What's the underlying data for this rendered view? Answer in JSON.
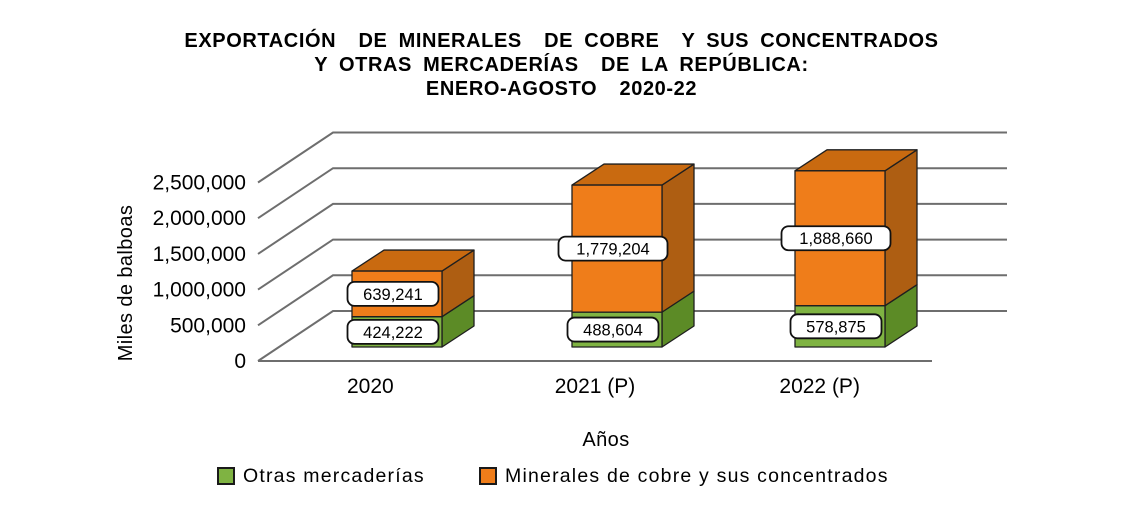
{
  "title": {
    "line1": "EXPORTACIÓN  DE MINERALES  DE COBRE  Y SUS CONCENTRADOS",
    "line2": "Y OTRAS MERCADERÍAS  DE LA REPÚBLICA:",
    "line3": "ENERO-AGOSTO  2020-22"
  },
  "chart_data": {
    "type": "bar",
    "subtype": "3d-stacked-column",
    "title": "EXPORTACIÓN DE MINERALES DE COBRE Y SUS CONCENTRADOS Y OTRAS MERCADERÍAS DE LA REPÚBLICA: ENERO-AGOSTO 2020-22",
    "categories": [
      "2020",
      "2021 (P)",
      "2022 (P)"
    ],
    "series": [
      {
        "name": "Otras mercaderías",
        "color": "#7FB342",
        "values": [
          424222,
          488604,
          578875
        ],
        "labels": [
          "424,222",
          "488,604",
          "578,875"
        ]
      },
      {
        "name": "Minerales de cobre y sus concentrados",
        "color": "#EF7D1A",
        "values": [
          639241,
          1779204,
          1888660
        ],
        "labels": [
          "639,241",
          "1,779,204",
          "1,888,660"
        ]
      }
    ],
    "xlabel": "Años",
    "ylabel": "Miles de balboas",
    "ylim": [
      0,
      2500000
    ],
    "ytick_step": 500000,
    "yticks": [
      "0",
      "500,000",
      "1,000,000",
      "1,500,000",
      "2,000,000",
      "2,500,000"
    ],
    "grid": true,
    "legend_position": "bottom"
  },
  "colors": {
    "green_front": "#7FB342",
    "green_side": "#5C8B26",
    "orange_front": "#EF7D1A",
    "orange_side": "#AE5E12",
    "orange_top": "#C96A10",
    "outline": "#1f1f1f",
    "gridline": "#6E6E6E",
    "label_box_bg": "#ffffff",
    "label_box_border": "#111111",
    "text": "#000000"
  }
}
